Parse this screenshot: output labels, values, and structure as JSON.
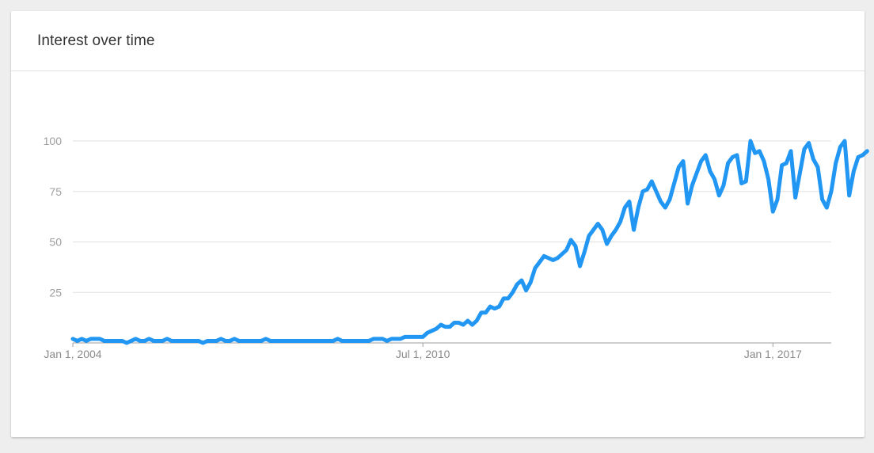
{
  "card": {
    "title": "Interest over time"
  },
  "colors": {
    "line": "#2196f3",
    "grid": "#e0e0e0",
    "axis": "#9e9e9e",
    "background": "#eeeeee"
  },
  "chart_data": {
    "type": "line",
    "title": "Interest over time",
    "xlabel": "",
    "ylabel": "",
    "ylim": [
      0,
      100
    ],
    "xlim": [
      "2004-01",
      "2018-02"
    ],
    "y_ticks": [
      25,
      50,
      75,
      100
    ],
    "x_ticks": [
      {
        "label": "Jan 1, 2004",
        "date": "2004-01"
      },
      {
        "label": "Jul 1, 2010",
        "date": "2010-07"
      },
      {
        "label": "Jan 1, 2017",
        "date": "2017-01"
      }
    ],
    "grid": true,
    "legend": "none",
    "series": [
      {
        "frequency": "monthly",
        "start": "2004-01",
        "values": [
          2,
          1,
          2,
          1,
          2,
          2,
          2,
          1,
          1,
          1,
          1,
          1,
          0,
          1,
          2,
          1,
          1,
          2,
          1,
          1,
          1,
          2,
          1,
          1,
          1,
          1,
          1,
          1,
          1,
          0,
          1,
          1,
          1,
          2,
          1,
          1,
          2,
          1,
          1,
          1,
          1,
          1,
          1,
          2,
          1,
          1,
          1,
          1,
          1,
          1,
          1,
          1,
          1,
          1,
          1,
          1,
          1,
          1,
          1,
          2,
          1,
          1,
          1,
          1,
          1,
          1,
          1,
          2,
          2,
          2,
          1,
          2,
          2,
          2,
          3,
          3,
          3,
          3,
          3,
          5,
          6,
          7,
          9,
          8,
          8,
          10,
          10,
          9,
          11,
          9,
          11,
          15,
          15,
          18,
          17,
          18,
          22,
          22,
          25,
          29,
          31,
          26,
          30,
          37,
          40,
          43,
          42,
          41,
          42,
          44,
          46,
          51,
          48,
          38,
          45,
          53,
          56,
          59,
          56,
          49,
          53,
          56,
          60,
          67,
          70,
          56,
          67,
          75,
          76,
          80,
          75,
          70,
          67,
          71,
          79,
          87,
          90,
          69,
          78,
          84,
          90,
          93,
          85,
          81,
          73,
          78,
          89,
          92,
          93,
          79,
          80,
          100,
          94,
          95,
          90,
          81,
          65,
          71,
          88,
          89,
          95,
          72,
          84,
          96,
          99,
          91,
          87,
          71,
          67,
          75,
          89,
          97,
          100,
          73,
          85,
          92,
          93,
          95
        ]
      }
    ]
  }
}
